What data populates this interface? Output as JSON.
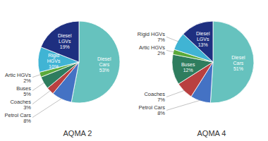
{
  "chart_data": [
    {
      "type": "pie",
      "title": "AQMA 2",
      "categories": [
        "Diesel Cars",
        "Petrol Cars",
        "Coaches",
        "Buses",
        "Artic HGVs",
        "Rigid HGVs",
        "Diesel LGVs"
      ],
      "values": [
        53,
        8,
        3,
        5,
        2,
        10,
        19
      ],
      "value_labels": [
        "53%",
        "8%",
        "3%",
        "5%",
        "2%",
        "10%",
        "19%"
      ],
      "colors": [
        "#66c2be",
        "#4472c4",
        "#b94040",
        "#2e7d5e",
        "#5aaa3a",
        "#40b4d4",
        "#1e2f80"
      ],
      "data_labels": true
    },
    {
      "type": "pie",
      "title": "AQMA 4",
      "categories": [
        "Diesel Cars",
        "Petrol Cars",
        "Coaches",
        "Buses",
        "Artic HGVs",
        "Rigid HGVs",
        "Diesel LGVs"
      ],
      "values": [
        51,
        8,
        7,
        12,
        2,
        7,
        13
      ],
      "value_labels": [
        "51%",
        "8%",
        "7%",
        "12%",
        "2%",
        "7%",
        "13%"
      ],
      "colors": [
        "#66c2be",
        "#4472c4",
        "#b94040",
        "#2e7d5e",
        "#5aaa3a",
        "#40b4d4",
        "#1e2f80"
      ],
      "data_labels": true
    }
  ]
}
